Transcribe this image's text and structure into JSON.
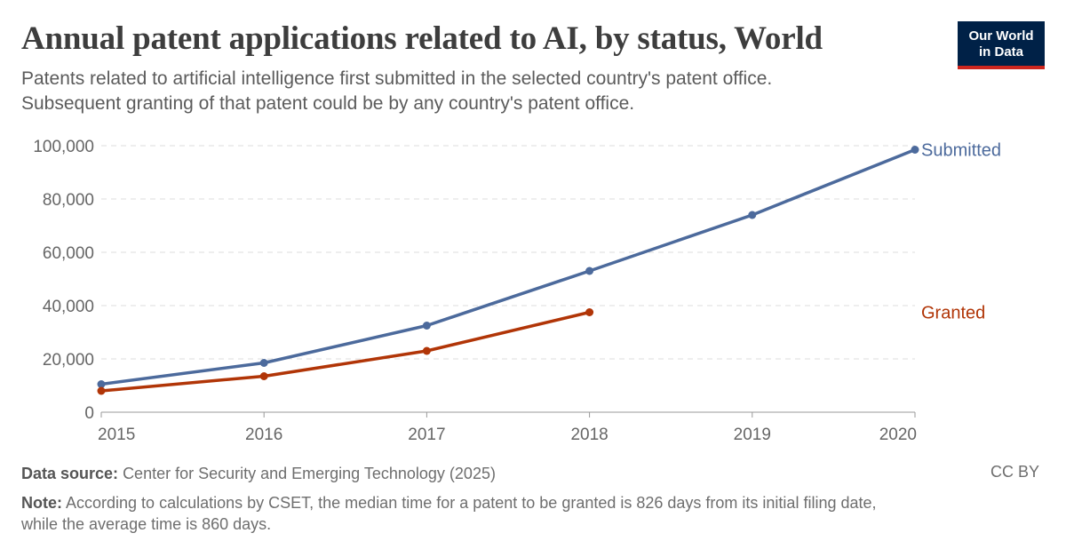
{
  "header": {
    "title": "Annual patent applications related to AI, by status, World",
    "subtitle_line1": "Patents related to artificial intelligence first submitted in the selected country's patent office.",
    "subtitle_line2": "Subsequent granting of that patent could be by any country's patent office."
  },
  "logo": {
    "line1": "Our World",
    "line2": "in Data",
    "bg_color": "#002147",
    "accent_color": "#ce261e"
  },
  "chart_data": {
    "type": "line",
    "x": [
      2015,
      2016,
      2017,
      2018,
      2019,
      2020
    ],
    "xlim": [
      2015,
      2020
    ],
    "ylim": [
      0,
      100000
    ],
    "yticks": [
      0,
      20000,
      40000,
      60000,
      80000,
      100000
    ],
    "ytick_labels": [
      "0",
      "20,000",
      "40,000",
      "60,000",
      "80,000",
      "100,000"
    ],
    "xtick_labels": [
      "2015",
      "2016",
      "2017",
      "2018",
      "2019",
      "2020"
    ],
    "grid": true,
    "legend": "labels at line ends (right)",
    "series": [
      {
        "name": "Submitted",
        "color": "#4c6a9c",
        "values": [
          10500,
          18500,
          32500,
          53000,
          74000,
          98500
        ]
      },
      {
        "name": "Granted",
        "color": "#b13507",
        "values": [
          8000,
          13500,
          23000,
          37500,
          null,
          null
        ]
      }
    ]
  },
  "footer": {
    "source_label": "Data source:",
    "source_text": "Center for Security and Emerging Technology (2025)",
    "license": "CC BY",
    "note_label": "Note:",
    "note_line1": "According to calculations by CSET, the median time for a patent to be granted is 826 days from its initial filing date,",
    "note_line2": "while the average time is 860 days."
  }
}
